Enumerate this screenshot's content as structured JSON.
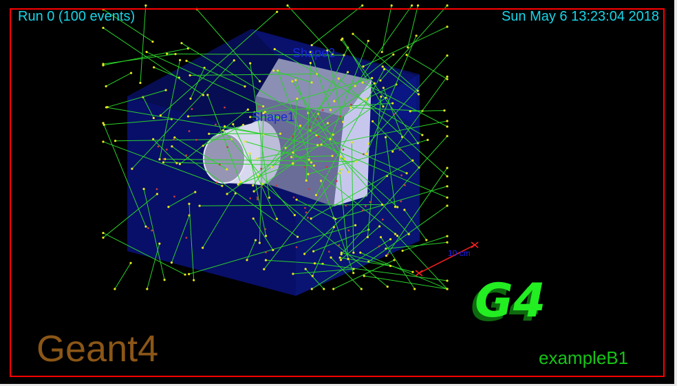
{
  "overlay": {
    "run_info": "Run 0 (100 events)",
    "timestamp": "Sun May  6 13:23:04 2018",
    "brand": "Geant4",
    "example": "exampleB1"
  },
  "labels": {
    "shape1": "Shape1",
    "shape2": "Shape2",
    "scale": "10 cm",
    "logo": "G4"
  },
  "colors": {
    "background": "#000000",
    "frame": "#ff0000",
    "header_text": "#17d6e8",
    "envelope_front": "#08106e",
    "envelope_side": "#0b1a8c",
    "track": "#2ad22a",
    "track_point": "#e8e81a",
    "step_point": "#c83c3c",
    "logo": "#22ee22",
    "logo_side": "#0e6a0e",
    "brand_text": "#8b5617",
    "example_text": "#16c416"
  },
  "event_count": 100
}
